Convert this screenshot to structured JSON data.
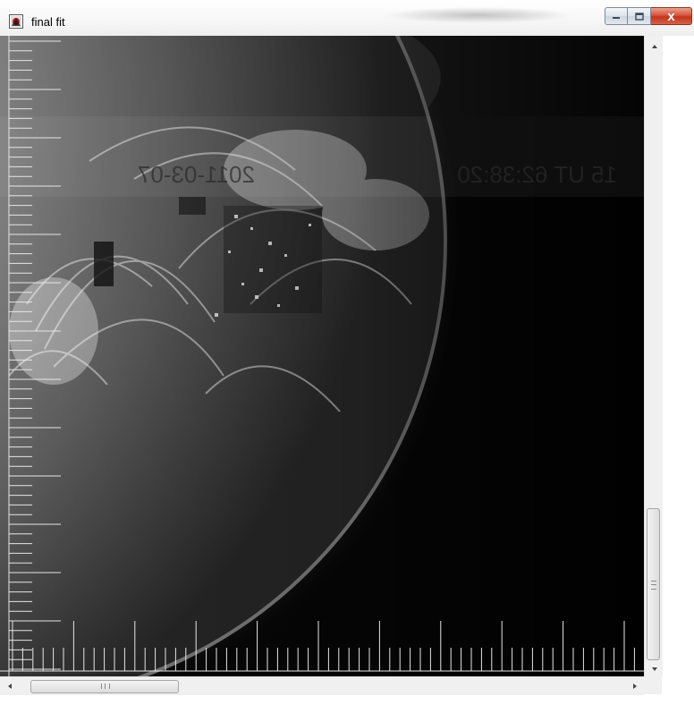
{
  "window": {
    "title": "final fit",
    "icon": "idl-window-icon",
    "buttons": {
      "minimize": "minimize-icon",
      "maximize": "maximize-icon",
      "close": "close-icon"
    },
    "close_glyph": "x"
  },
  "image": {
    "description_icon": "solar-euv-image",
    "overlay_text_left": "2011-03-07",
    "overlay_text_right": "15 UT 62:38:20",
    "accent_close": "#c8381e"
  },
  "scrollbars": {
    "horizontal_grip": "III",
    "vertical_grip": "grip"
  }
}
